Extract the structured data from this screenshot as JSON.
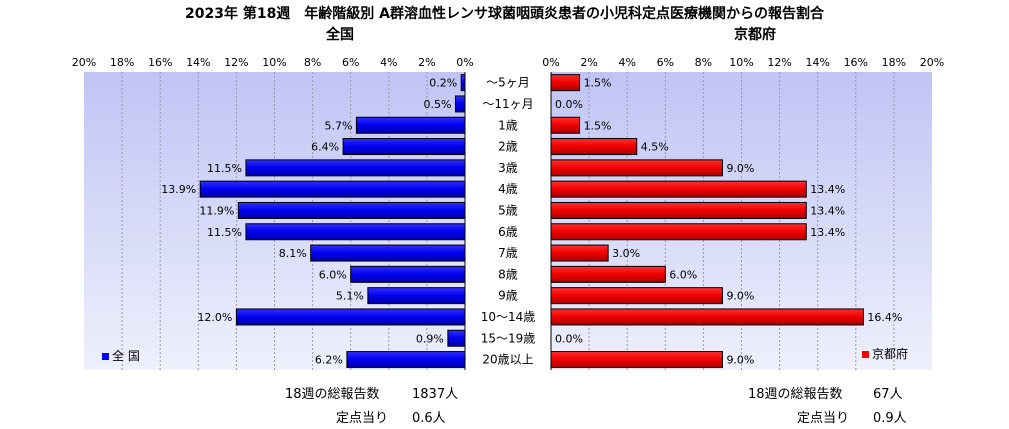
{
  "title": "2023年 第18週　年齢階級別 A群溶血性レンサ球菌咽頭炎患者の小児科定点医療機関からの報告割合",
  "chart_data": [
    {
      "type": "bar",
      "orientation": "horizontal",
      "direction": "right-to-left",
      "title": "全国",
      "legend": "全 国",
      "legend_position": "bottom-left",
      "color": "#0000ff",
      "xlim": [
        0,
        20
      ],
      "ticks": [
        "20%",
        "18%",
        "16%",
        "14%",
        "12%",
        "10%",
        "8%",
        "6%",
        "4%",
        "2%",
        "0%"
      ],
      "grid": true,
      "categories": [
        "～5ヶ月",
        "～11ヶ月",
        "1歳",
        "2歳",
        "3歳",
        "4歳",
        "5歳",
        "6歳",
        "7歳",
        "8歳",
        "9歳",
        "10～14歳",
        "15～19歳",
        "20歳以上"
      ],
      "values": [
        0.2,
        0.5,
        5.7,
        6.4,
        11.5,
        13.9,
        11.9,
        11.5,
        8.1,
        6.0,
        5.1,
        12.0,
        0.9,
        6.2
      ],
      "labels": [
        "0.2%",
        "0.5%",
        "5.7%",
        "6.4%",
        "11.5%",
        "13.9%",
        "11.9%",
        "11.5%",
        "8.1%",
        "6.0%",
        "5.1%",
        "12.0%",
        "0.9%",
        "6.2%"
      ]
    },
    {
      "type": "bar",
      "orientation": "horizontal",
      "direction": "left-to-right",
      "title": "京都府",
      "legend": "京都府",
      "legend_position": "bottom-right",
      "color": "#ff0000",
      "xlim": [
        0,
        20
      ],
      "ticks": [
        "0%",
        "2%",
        "4%",
        "6%",
        "8%",
        "10%",
        "12%",
        "14%",
        "16%",
        "18%",
        "20%"
      ],
      "grid": true,
      "categories": [
        "～5ヶ月",
        "～11ヶ月",
        "1歳",
        "2歳",
        "3歳",
        "4歳",
        "5歳",
        "6歳",
        "7歳",
        "8歳",
        "9歳",
        "10～14歳",
        "15～19歳",
        "20歳以上"
      ],
      "values": [
        1.5,
        0.0,
        1.5,
        4.5,
        9.0,
        13.4,
        13.4,
        13.4,
        3.0,
        6.0,
        9.0,
        16.4,
        0.0,
        9.0
      ],
      "labels": [
        "1.5%",
        "0.0%",
        "1.5%",
        "4.5%",
        "9.0%",
        "13.4%",
        "13.4%",
        "13.4%",
        "3.0%",
        "6.0%",
        "9.0%",
        "16.4%",
        "0.0%",
        "9.0%"
      ]
    }
  ],
  "footer": {
    "left_total_label": "18週の総報告数",
    "left_total_value": "1837人",
    "left_per_label": "定点当り",
    "left_per_value": "0.6人",
    "right_total_label": "18週の総報告数",
    "right_total_value": "67人",
    "right_per_label": "定点当り",
    "right_per_value": "0.9人"
  }
}
